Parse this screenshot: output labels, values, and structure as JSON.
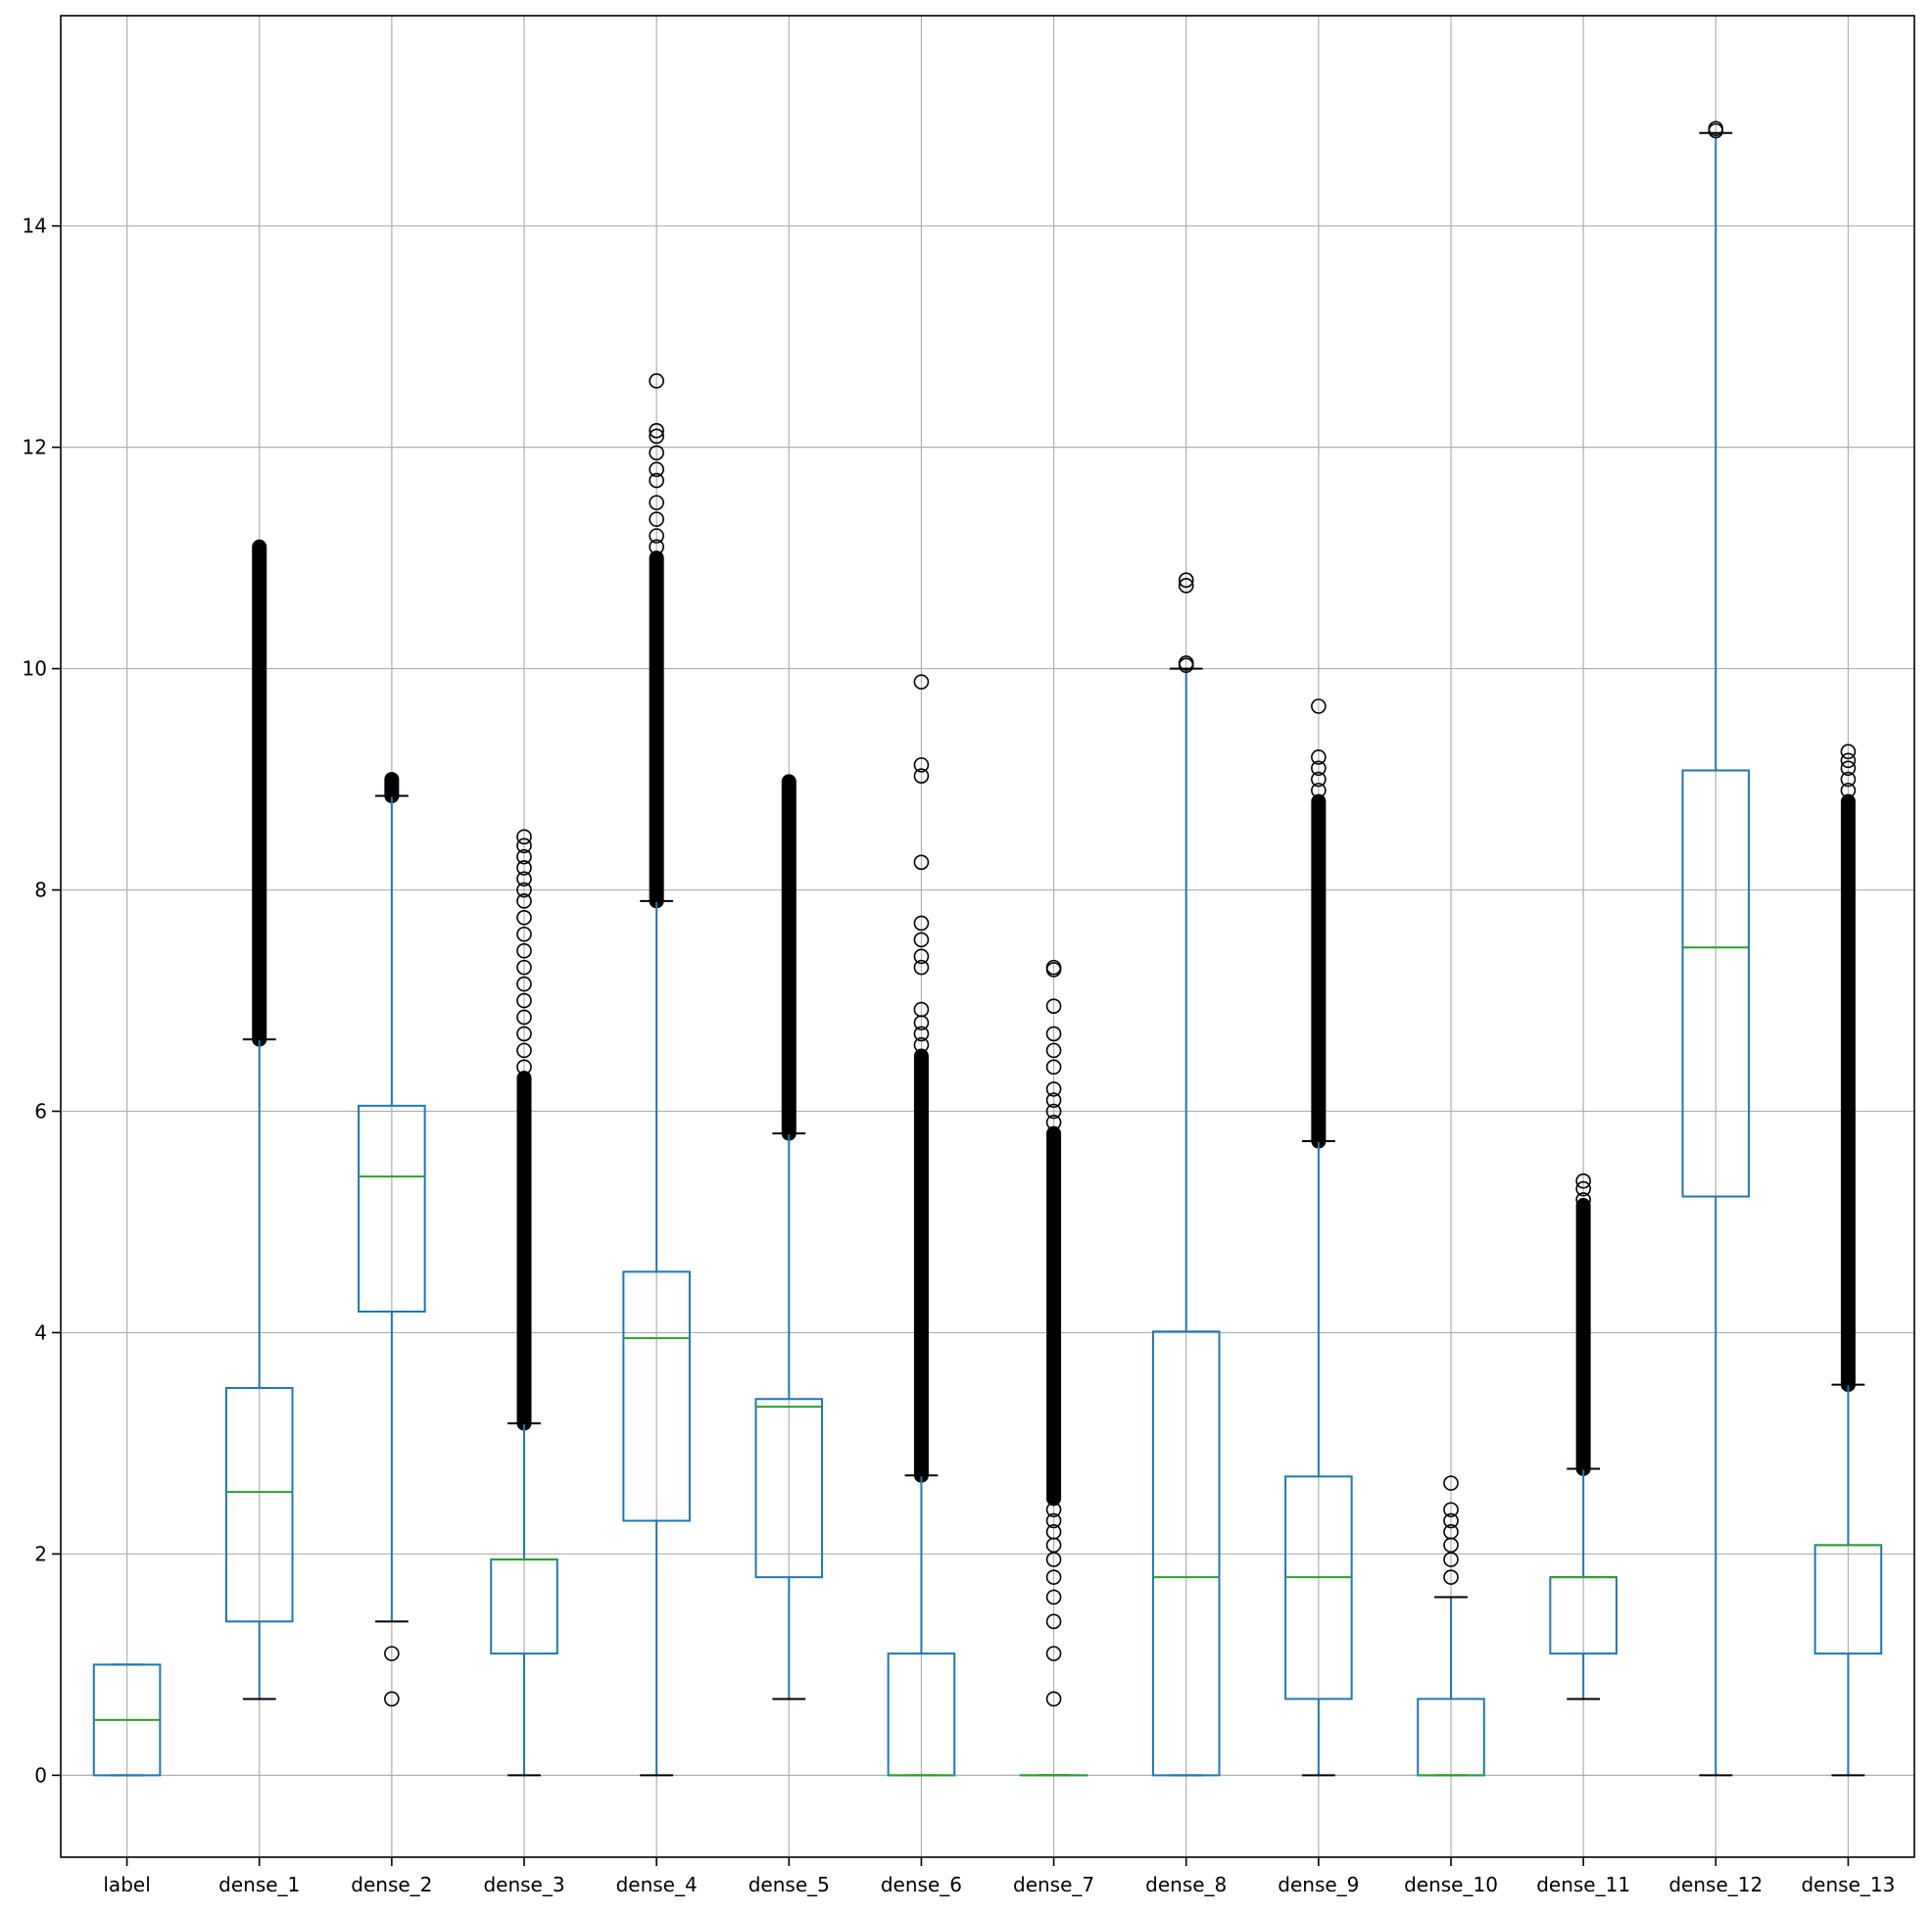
{
  "chart_data": {
    "type": "box",
    "title": "",
    "xlabel": "",
    "ylabel": "",
    "categories": [
      "label",
      "dense_1",
      "dense_2",
      "dense_3",
      "dense_4",
      "dense_5",
      "dense_6",
      "dense_7",
      "dense_8",
      "dense_9",
      "dense_10",
      "dense_11",
      "dense_12",
      "dense_13"
    ],
    "y_ticks": [
      0,
      2,
      4,
      6,
      8,
      10,
      12,
      14
    ],
    "ylim": [
      -0.74,
      15.9
    ],
    "grid": true,
    "colors": {
      "box": "#1f77b4",
      "median": "#2ca02c",
      "whisker": "#1f77b4",
      "cap": "#000000",
      "flier": "#000000",
      "grid": "#b0b0b0"
    },
    "boxes": [
      {
        "name": "label",
        "whislo": 0,
        "q1": 0,
        "med": 0.5,
        "q3": 1,
        "whishi": 1,
        "fliers_dense": null,
        "fliers": []
      },
      {
        "name": "dense_1",
        "whislo": 0.69,
        "q1": 1.39,
        "med": 2.56,
        "q3": 3.5,
        "whishi": 6.65,
        "fliers_dense": [
          6.65,
          11.1
        ],
        "fliers": []
      },
      {
        "name": "dense_2",
        "whislo": 1.39,
        "q1": 4.19,
        "med": 5.41,
        "q3": 6.05,
        "whishi": 8.85,
        "fliers_dense": [
          8.85,
          9.0
        ],
        "fliers": [
          0.69,
          1.1
        ]
      },
      {
        "name": "dense_3",
        "whislo": 0,
        "q1": 1.1,
        "med": 1.95,
        "q3": 1.95,
        "whishi": 3.18,
        "fliers_dense": [
          3.18,
          6.3
        ],
        "fliers": [
          6.4,
          6.55,
          6.7,
          6.85,
          7.0,
          7.15,
          7.3,
          7.45,
          7.6,
          7.75,
          7.9,
          8.0,
          8.1,
          8.2,
          8.3,
          8.4,
          8.48
        ]
      },
      {
        "name": "dense_4",
        "whislo": 0,
        "q1": 2.3,
        "med": 3.95,
        "q3": 4.55,
        "whishi": 7.9,
        "fliers_dense": [
          7.9,
          11.0
        ],
        "fliers": [
          11.1,
          11.2,
          11.35,
          11.5,
          11.7,
          11.8,
          11.95,
          12.1,
          12.15,
          12.6
        ]
      },
      {
        "name": "dense_5",
        "whislo": 0.69,
        "q1": 1.79,
        "med": 3.33,
        "q3": 3.4,
        "whishi": 5.8,
        "fliers_dense": [
          5.8,
          8.98
        ],
        "fliers": []
      },
      {
        "name": "dense_6",
        "whislo": 0,
        "q1": 0,
        "med": 0,
        "q3": 1.1,
        "whishi": 2.71,
        "fliers_dense": [
          2.71,
          6.5
        ],
        "fliers": [
          6.6,
          6.7,
          6.8,
          6.92,
          7.3,
          7.4,
          7.55,
          7.7,
          8.25,
          9.03,
          9.13,
          9.88
        ]
      },
      {
        "name": "dense_7",
        "whislo": 0,
        "q1": 0,
        "med": 0,
        "q3": 0,
        "whishi": 0,
        "fliers_dense": [
          2.5,
          5.8
        ],
        "fliers": [
          0.69,
          1.1,
          1.39,
          1.61,
          1.79,
          1.95,
          2.08,
          2.2,
          2.3,
          2.4,
          5.9,
          6.0,
          6.1,
          6.2,
          6.4,
          6.55,
          6.7,
          6.95,
          7.28,
          7.3
        ]
      },
      {
        "name": "dense_8",
        "whislo": 0,
        "q1": 0,
        "med": 1.79,
        "q3": 4.01,
        "whishi": 10.0,
        "fliers_dense": null,
        "fliers": [
          10.03,
          10.05,
          10.75,
          10.8
        ]
      },
      {
        "name": "dense_9",
        "whislo": 0,
        "q1": 0.69,
        "med": 1.79,
        "q3": 2.7,
        "whishi": 5.73,
        "fliers_dense": [
          5.73,
          8.8
        ],
        "fliers": [
          8.9,
          9.0,
          9.1,
          9.2,
          9.66
        ]
      },
      {
        "name": "dense_10",
        "whislo": 0,
        "q1": 0,
        "med": 0,
        "q3": 0.69,
        "whishi": 1.61,
        "fliers_dense": null,
        "fliers": [
          1.79,
          1.95,
          2.08,
          2.2,
          2.3,
          2.4,
          2.64
        ]
      },
      {
        "name": "dense_11",
        "whislo": 0.69,
        "q1": 1.1,
        "med": 1.79,
        "q3": 1.79,
        "whishi": 2.77,
        "fliers_dense": [
          2.77,
          5.15
        ],
        "fliers": [
          5.2,
          5.3,
          5.37
        ]
      },
      {
        "name": "dense_12",
        "whislo": 0,
        "q1": 5.23,
        "med": 7.48,
        "q3": 9.08,
        "whishi": 14.84,
        "fliers_dense": null,
        "fliers": [
          14.86,
          14.88
        ]
      },
      {
        "name": "dense_13",
        "whislo": 0,
        "q1": 1.1,
        "med": 2.08,
        "q3": 2.08,
        "whishi": 3.53,
        "fliers_dense": [
          3.53,
          8.8
        ],
        "fliers": [
          8.9,
          9.0,
          9.1,
          9.17,
          9.25
        ]
      }
    ]
  }
}
